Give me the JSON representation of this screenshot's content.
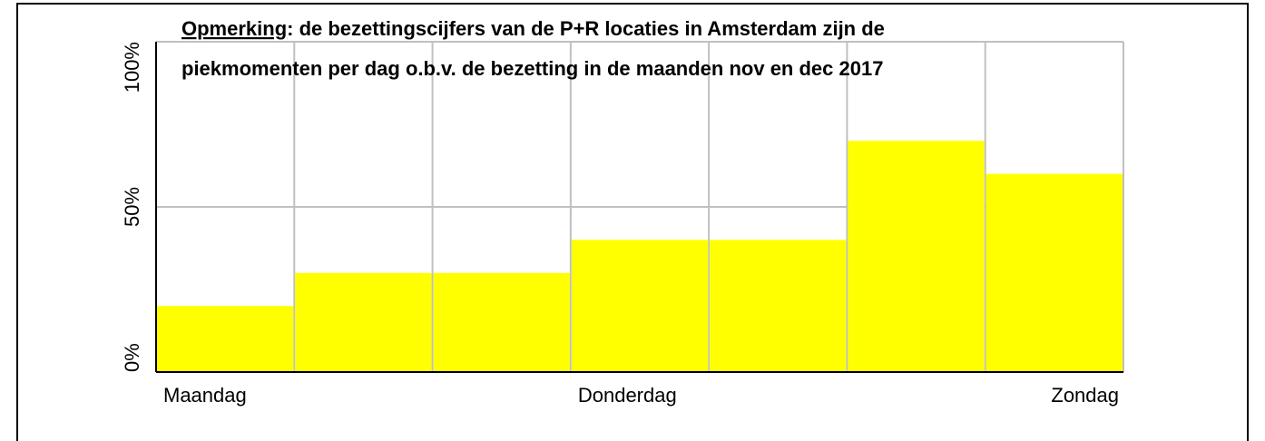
{
  "chart_data": {
    "type": "bar",
    "annotation": {
      "label": "Opmerking",
      "lines": [
        ": de bezettingscijfers van de P+R locaties in Amsterdam zijn de",
        "piekmomenten per dag o.b.v. de bezetting in de maanden nov en dec 2017"
      ]
    },
    "categories": [
      "Maandag",
      null,
      null,
      "Donderdag",
      null,
      null,
      "Zondag"
    ],
    "values": [
      20,
      30,
      30,
      40,
      40,
      70,
      60
    ],
    "color": "#ffff00",
    "ylim": [
      0,
      100
    ],
    "yticks": [
      {
        "value": 0,
        "label": "0%"
      },
      {
        "value": 50,
        "label": "50%"
      },
      {
        "value": 100,
        "label": "100%"
      }
    ],
    "grid": true
  }
}
